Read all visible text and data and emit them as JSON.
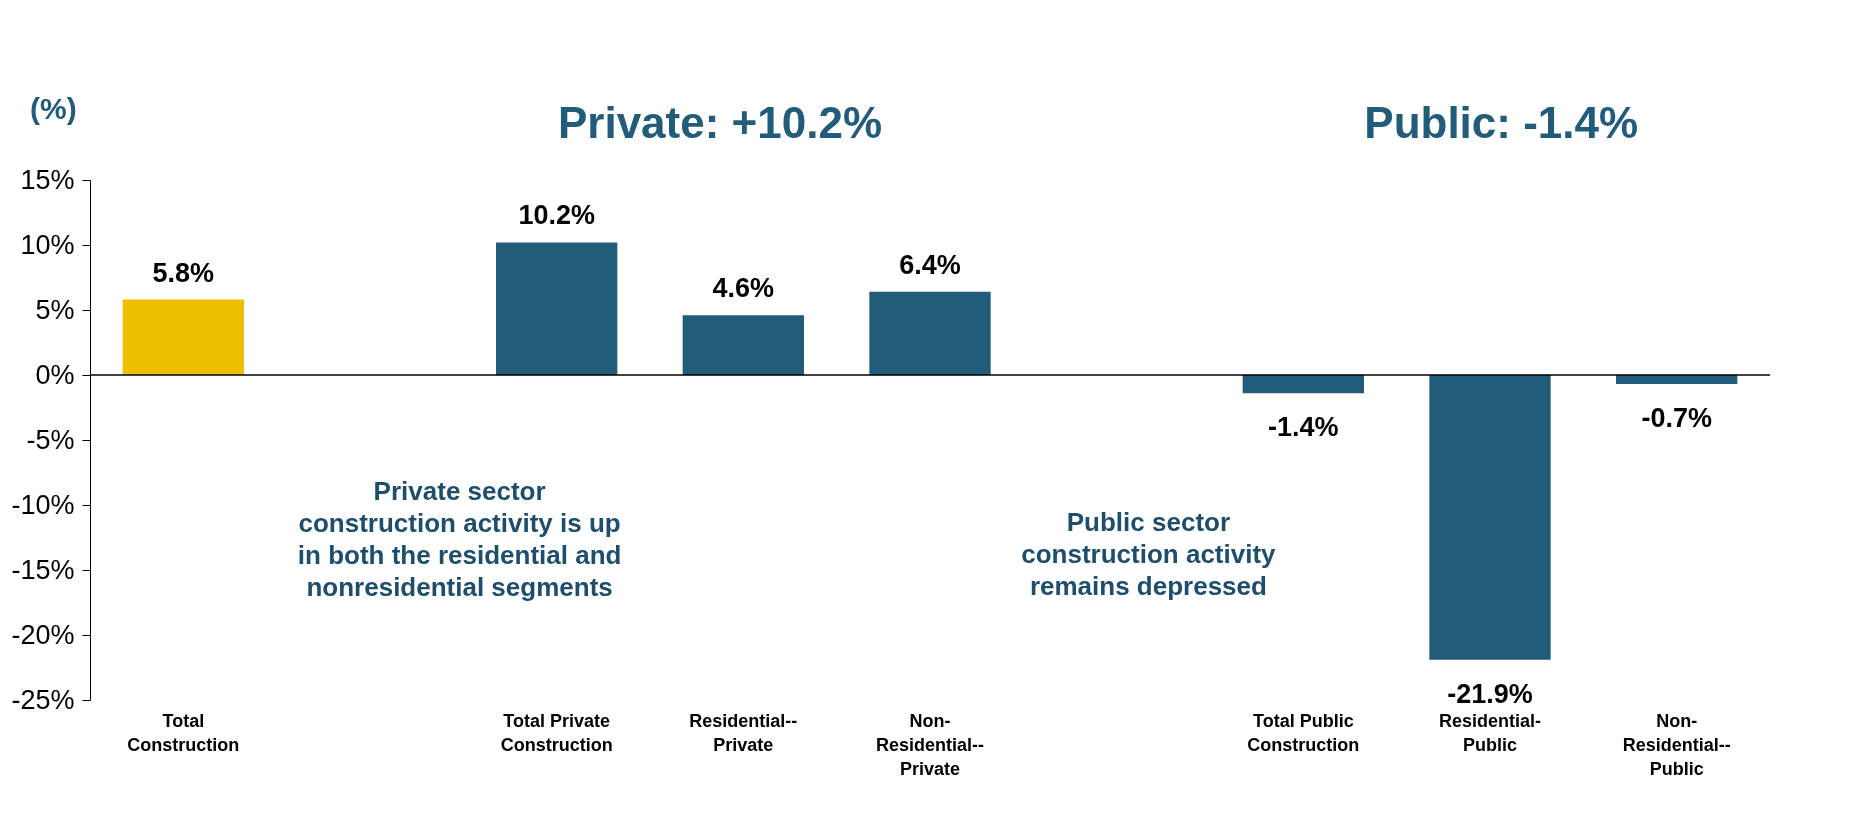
{
  "chart_data": {
    "type": "bar",
    "ylabel": "(%)",
    "categories": [
      "Total\nConstruction",
      null,
      "Total Private\nConstruction",
      "Residential--\nPrivate",
      "Non-\nResidential--\nPrivate",
      null,
      "Total Public\nConstruction",
      "Residential-\nPublic",
      "Non-\nResidential--\nPublic"
    ],
    "values": [
      5.8,
      null,
      10.2,
      4.6,
      6.4,
      null,
      -1.4,
      -21.9,
      -0.7
    ],
    "colors": [
      "#edc001",
      null,
      "#235b7a",
      "#235b7a",
      "#235b7a",
      null,
      "#235b7a",
      "#235b7a",
      "#235b7a"
    ],
    "value_labels": [
      "5.8%",
      null,
      "10.2%",
      "4.6%",
      "6.4%",
      null,
      "-1.4%",
      "-21.9%",
      "-0.7%"
    ],
    "ylim": [
      -25,
      15
    ],
    "yticks": [
      {
        "value": -25,
        "label": "-25%"
      },
      {
        "value": -20,
        "label": "-20%"
      },
      {
        "value": -15,
        "label": "-15%"
      },
      {
        "value": -10,
        "label": "-10%"
      },
      {
        "value": -5,
        "label": "-5%"
      },
      {
        "value": 0,
        "label": "0%"
      },
      {
        "value": 5,
        "label": "5%"
      },
      {
        "value": 10,
        "label": "10%"
      },
      {
        "value": 15,
        "label": "15%"
      }
    ],
    "annotations": [
      "Private: +10.2%",
      "Public: -1.4%",
      "Private sector\nconstruction activity is up\nin both the residential and\nnonresidential segments",
      "Public sector\nconstruction activity\nremains depressed"
    ]
  }
}
